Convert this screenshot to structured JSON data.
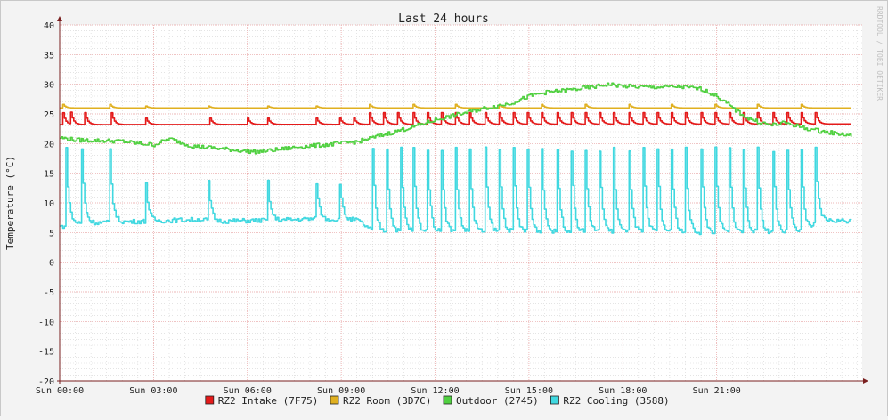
{
  "watermark": "RRDTOOL / TOBI OETIKER",
  "colors": {
    "background": "#f3f3f3",
    "plot_background": "#ffffff",
    "grid_major": "#e8a0a0",
    "grid_minor": "#d4d4d4",
    "axis": "#7a1f1f",
    "text": "#222222"
  },
  "chart_data": {
    "type": "line",
    "title": "Last 24 hours",
    "xlabel": "",
    "ylabel": "Temperature (°C)",
    "ylim": [
      -20,
      40
    ],
    "xlim_hours": [
      0,
      25.65
    ],
    "y_ticks": [
      40,
      35,
      30,
      25,
      20,
      15,
      10,
      5,
      0,
      -5,
      -10,
      -15,
      -20
    ],
    "x_tick_labels": [
      {
        "hour": 0,
        "label": "Sun 00:00"
      },
      {
        "hour": 3,
        "label": "Sun 03:00"
      },
      {
        "hour": 6,
        "label": "Sun 06:00"
      },
      {
        "hour": 9,
        "label": "Sun 09:00"
      },
      {
        "hour": 12,
        "label": "Sun 12:00"
      },
      {
        "hour": 15,
        "label": "Sun 15:00"
      },
      {
        "hour": 18,
        "label": "Sun 18:00"
      },
      {
        "hour": 21,
        "label": "Sun 21:00"
      }
    ],
    "grid": true,
    "legend_position": "bottom",
    "series": [
      {
        "name": "RZ2 Intake (7F75)",
        "color": "#e41a1a",
        "baseline": [
          [
            0,
            23.2
          ],
          [
            25.3,
            23.3
          ]
        ],
        "spikes": [
          0.1,
          0.35,
          0.8,
          1.65,
          2.7,
          4.75,
          5.95,
          6.6,
          8.15,
          8.9,
          9.35,
          9.9,
          10.35,
          10.8,
          11.3,
          11.75,
          12.2,
          12.65,
          13.1,
          13.6,
          14.05,
          14.5,
          14.95,
          15.4,
          15.9,
          16.35,
          16.8,
          17.25,
          17.7,
          18.2,
          18.65,
          19.1,
          19.55,
          20.0,
          20.5,
          20.95,
          21.4,
          21.85,
          22.3,
          22.8,
          23.25,
          23.7,
          24.15
        ],
        "spike_peak": 25.2
      },
      {
        "name": "RZ2 Room (3D7C)",
        "color": "#e0b020",
        "baseline": [
          [
            0,
            26.0
          ],
          [
            25.3,
            26.0
          ]
        ],
        "spikes": [
          0.1,
          1.6,
          2.7,
          4.7,
          6.6,
          8.15,
          9.9,
          11.3,
          12.65,
          14.05,
          15.4,
          16.8,
          18.2,
          19.55,
          20.95,
          22.3,
          23.7
        ],
        "spike_peak": 26.6
      },
      {
        "name": "Outdoor (2745)",
        "color": "#50d040",
        "points": [
          [
            0,
            21.0
          ],
          [
            0.5,
            20.6
          ],
          [
            2.0,
            20.4
          ],
          [
            2.5,
            20.0
          ],
          [
            3.0,
            19.8
          ],
          [
            3.5,
            20.8
          ],
          [
            4.2,
            19.6
          ],
          [
            5.0,
            19.2
          ],
          [
            5.8,
            18.8
          ],
          [
            6.3,
            18.6
          ],
          [
            7.0,
            19.0
          ],
          [
            7.7,
            19.5
          ],
          [
            8.5,
            19.8
          ],
          [
            9.5,
            20.3
          ],
          [
            10.0,
            21.0
          ],
          [
            10.7,
            22.0
          ],
          [
            11.4,
            23.0
          ],
          [
            12.0,
            24.0
          ],
          [
            12.8,
            25.0
          ],
          [
            13.6,
            26.0
          ],
          [
            14.4,
            26.8
          ],
          [
            15.0,
            28.0
          ],
          [
            15.5,
            28.6
          ],
          [
            16.2,
            29.0
          ],
          [
            17.0,
            29.5
          ],
          [
            17.5,
            30.0
          ],
          [
            18.0,
            29.7
          ],
          [
            18.8,
            29.5
          ],
          [
            19.8,
            29.6
          ],
          [
            20.5,
            29.2
          ],
          [
            21.0,
            28.0
          ],
          [
            21.5,
            26.0
          ],
          [
            22.0,
            24.2
          ],
          [
            22.7,
            23.1
          ],
          [
            23.2,
            23.5
          ],
          [
            23.8,
            22.6
          ],
          [
            24.4,
            22.0
          ],
          [
            25.0,
            21.6
          ],
          [
            25.3,
            21.3
          ]
        ],
        "noise": 0.35
      },
      {
        "name": "RZ2 Cooling (3588)",
        "color": "#40d8e0",
        "baseline": [
          [
            0,
            6.0
          ],
          [
            0.5,
            6.5
          ],
          [
            2.0,
            6.8
          ],
          [
            4.5,
            7.2
          ],
          [
            5.0,
            6.9
          ],
          [
            7.0,
            7.1
          ],
          [
            8.0,
            7.3
          ],
          [
            9.5,
            7.1
          ],
          [
            10.0,
            5.2
          ],
          [
            20.5,
            5.0
          ],
          [
            23.8,
            5.0
          ],
          [
            24.3,
            7.0
          ],
          [
            25.3,
            7.0
          ]
        ],
        "spikes": [
          0.2,
          0.7,
          1.6,
          2.7,
          4.7,
          6.6,
          8.15,
          8.9,
          10.0,
          10.45,
          10.9,
          11.3,
          11.75,
          12.2,
          12.65,
          13.1,
          13.6,
          14.05,
          14.5,
          14.95,
          15.4,
          15.9,
          16.35,
          16.8,
          17.25,
          17.7,
          18.2,
          18.65,
          19.1,
          19.55,
          20.0,
          20.5,
          20.95,
          21.4,
          21.85,
          22.3,
          22.8,
          23.25,
          23.7,
          24.15
        ],
        "spike_peak": 19.0,
        "noise": 0.4
      }
    ]
  }
}
